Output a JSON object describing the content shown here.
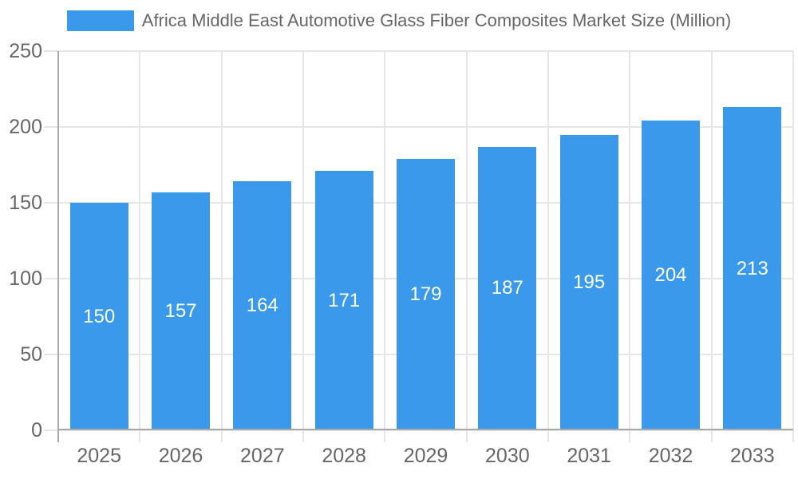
{
  "chart_data": {
    "type": "bar",
    "title": "Africa Middle East Automotive Glass Fiber Composites Market Size (Million)",
    "legend_position": "top",
    "categories": [
      "2025",
      "2026",
      "2027",
      "2028",
      "2029",
      "2030",
      "2031",
      "2032",
      "2033"
    ],
    "values": [
      150,
      157,
      164,
      171,
      179,
      187,
      195,
      204,
      213
    ],
    "xlabel": "",
    "ylabel": "",
    "ylim": [
      0,
      250
    ],
    "yticks": [
      0,
      50,
      100,
      150,
      200,
      250
    ],
    "grid": true,
    "bar_value_labels_visible": true,
    "colors": {
      "bar": "#3A99EA",
      "bar_label_text": "#FFFFFF",
      "axis_text": "#666666",
      "grid_line": "#E6E6E6",
      "axis_line": "#A9A9A9",
      "background": "#FFFFFF"
    }
  }
}
